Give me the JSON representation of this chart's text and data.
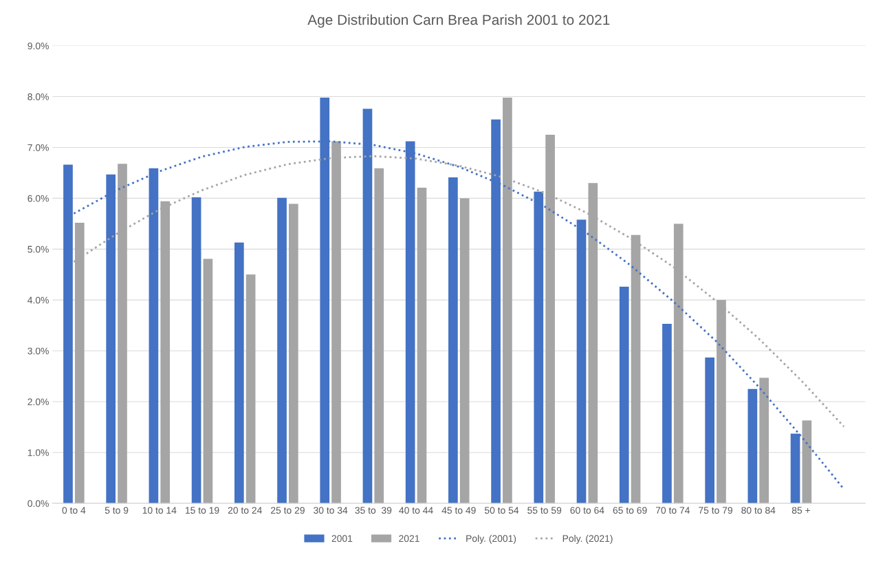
{
  "chart_data": {
    "type": "bar",
    "title": "Age Distribution Carn Brea Parish 2001 to 2021",
    "categories": [
      "0 to 4",
      "5 to 9",
      "10 to 14",
      "15 to 19",
      "20 to 24",
      "25 to 29",
      "30 to 34",
      "35 to  39",
      "40 to 44",
      "45 to 49",
      "50 to 54",
      "55 to 59",
      "60 to 64",
      "65 to 69",
      "70 to 74",
      "75 to 79",
      "80 to 84",
      "85 +",
      null
    ],
    "series": [
      {
        "name": "2001",
        "color": "#4472c4",
        "values": [
          6.66,
          6.47,
          6.59,
          6.02,
          5.13,
          6.01,
          7.98,
          7.76,
          7.12,
          6.41,
          7.55,
          6.13,
          5.58,
          4.26,
          3.53,
          2.87,
          2.25,
          1.37,
          null
        ]
      },
      {
        "name": "2021",
        "color": "#a5a5a5",
        "values": [
          5.52,
          6.68,
          5.94,
          4.81,
          4.5,
          5.89,
          7.12,
          6.59,
          6.21,
          6.0,
          7.98,
          7.25,
          6.3,
          5.28,
          5.5,
          4.0,
          2.47,
          1.63,
          null
        ]
      },
      {
        "name": "Poly. (2001)",
        "type": "line",
        "line_style": "dotted",
        "color": "#4472c4",
        "values": [
          5.7,
          6.16,
          6.53,
          6.82,
          7.01,
          7.11,
          7.12,
          7.05,
          6.88,
          6.62,
          6.27,
          5.84,
          5.31,
          4.69,
          3.98,
          3.2,
          2.3,
          1.32,
          0.28
        ]
      },
      {
        "name": "Poly. (2021)",
        "type": "line",
        "line_style": "dotted",
        "color": "#a5a5a5",
        "values": [
          4.75,
          5.3,
          5.78,
          6.16,
          6.46,
          6.67,
          6.79,
          6.83,
          6.78,
          6.64,
          6.42,
          6.11,
          5.71,
          5.22,
          4.66,
          3.99,
          3.25,
          2.42,
          1.51
        ]
      }
    ],
    "ylim": [
      0,
      9
    ],
    "yticks": [
      {
        "value": 0,
        "label": "0.0%"
      },
      {
        "value": 1,
        "label": "1.0%"
      },
      {
        "value": 2,
        "label": "2.0%"
      },
      {
        "value": 3,
        "label": "3.0%"
      },
      {
        "value": 4,
        "label": "4.0%"
      },
      {
        "value": 5,
        "label": "5.0%"
      },
      {
        "value": 6,
        "label": "6.0%"
      },
      {
        "value": 7,
        "label": "7.0%"
      },
      {
        "value": 8,
        "label": "8.0%"
      },
      {
        "value": 9,
        "label": "9.0%"
      }
    ],
    "grid": "y",
    "legend": "bottom",
    "marker": "none"
  }
}
